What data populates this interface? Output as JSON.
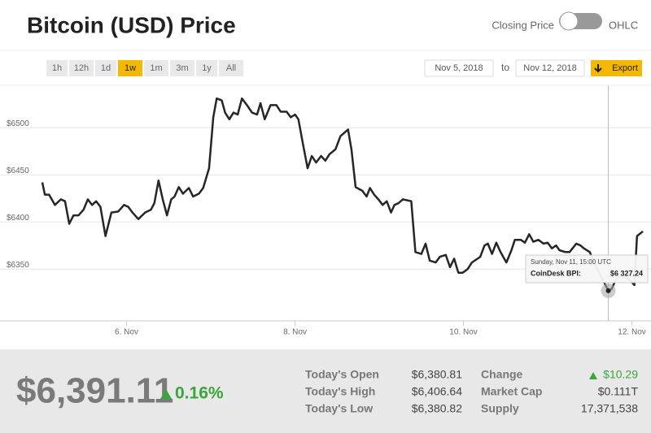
{
  "header": {
    "title": "Bitcoin (USD) Price",
    "toggle_left": "Closing Price",
    "toggle_right": "OHLC"
  },
  "controls": {
    "ranges": [
      "1h",
      "12h",
      "1d",
      "1w",
      "1m",
      "3m",
      "1y",
      "All"
    ],
    "active_range": 3,
    "date_from": "Nov 5, 2018",
    "date_sep": "to",
    "date_to": "Nov 12, 2018",
    "export": "Export"
  },
  "chart_data": {
    "type": "line",
    "color": "#262626",
    "x": [
      5.0,
      5.03,
      5.08,
      5.15,
      5.22,
      5.27,
      5.32,
      5.37,
      5.43,
      5.49,
      5.54,
      5.59,
      5.64,
      5.69,
      5.75,
      5.82,
      5.9,
      5.97,
      6.02,
      6.07,
      6.14,
      6.22,
      6.29,
      6.33,
      6.38,
      6.43,
      6.48,
      6.53,
      6.57,
      6.62,
      6.67,
      6.74,
      6.79,
      6.86,
      6.91,
      6.98,
      7.03,
      7.07,
      7.13,
      7.17,
      7.22,
      7.27,
      7.32,
      7.37,
      7.43,
      7.49,
      7.55,
      7.59,
      7.64,
      7.71,
      7.78,
      7.83,
      7.9,
      7.95,
      8.0,
      8.04,
      8.09,
      8.15,
      8.2,
      8.25,
      8.31,
      8.36,
      8.41,
      8.48,
      8.54,
      8.63,
      8.67,
      8.72,
      8.8,
      8.85,
      8.89,
      8.94,
      8.99,
      9.04,
      9.09,
      9.14,
      9.18,
      9.23,
      9.28,
      9.38,
      9.43,
      9.5,
      9.55,
      9.6,
      9.67,
      9.72,
      9.79,
      9.84,
      9.89,
      9.94,
      9.99,
      10.05,
      10.1,
      10.2,
      10.25,
      10.29,
      10.34,
      10.39,
      10.44,
      10.51,
      10.57,
      10.61,
      10.68,
      10.73,
      10.78,
      10.83,
      10.89,
      10.95,
      11.0,
      11.05,
      11.1,
      11.14,
      11.21,
      11.26,
      11.34,
      11.39,
      11.43,
      11.5,
      11.55,
      11.63,
      11.72,
      11.76,
      11.8,
      11.84,
      11.92,
      11.99,
      12.03,
      12.06,
      12.13
    ],
    "values": [
      6442,
      6429,
      6429,
      6418,
      6424,
      6422,
      6398,
      6407,
      6407,
      6413,
      6424,
      6418,
      6422,
      6416,
      6385,
      6410,
      6411,
      6418,
      6416,
      6410,
      6403,
      6410,
      6413,
      6420,
      6444,
      6424,
      6407,
      6424,
      6427,
      6437,
      6430,
      6436,
      6427,
      6430,
      6436,
      6457,
      6511,
      6531,
      6529,
      6516,
      6509,
      6516,
      6514,
      6531,
      6524,
      6516,
      6514,
      6526,
      6509,
      6524,
      6524,
      6517,
      6517,
      6511,
      6514,
      6509,
      6485,
      6457,
      6470,
      6463,
      6470,
      6465,
      6472,
      6477,
      6491,
      6498,
      6477,
      6437,
      6433,
      6427,
      6436,
      6429,
      6424,
      6418,
      6422,
      6410,
      6418,
      6420,
      6424,
      6422,
      6368,
      6366,
      6377,
      6359,
      6357,
      6363,
      6365,
      6352,
      6361,
      6346,
      6346,
      6350,
      6357,
      6363,
      6375,
      6377,
      6366,
      6378,
      6368,
      6357,
      6370,
      6381,
      6381,
      6378,
      6387,
      6379,
      6381,
      6377,
      6378,
      6372,
      6375,
      6370,
      6368,
      6368,
      6377,
      6375,
      6372,
      6368,
      6357,
      6343,
      6327,
      6329,
      6337,
      6342,
      6342,
      6337,
      6333,
      6385,
      6390
    ],
    "xlim": [
      5,
      12.13
    ],
    "xticks": [
      {
        "value": 6,
        "label": "6. Nov"
      },
      {
        "value": 8,
        "label": "8. Nov"
      },
      {
        "value": 10,
        "label": "10. Nov"
      },
      {
        "value": 12,
        "label": "12. Nov"
      }
    ],
    "ylim": [
      6295,
      6545
    ],
    "yticks": [
      {
        "value": 6350,
        "label": "$6350"
      },
      {
        "value": 6400,
        "label": "$6400"
      },
      {
        "value": 6450,
        "label": "$6450"
      },
      {
        "value": 6500,
        "label": "$6500"
      }
    ],
    "grid": true,
    "tooltip": {
      "title": "Sunday, Nov 11, 15:00 UTC",
      "label": "CoinDesk BPI:",
      "value": "$6 327.24"
    }
  },
  "summary": {
    "price": "$6,391.11",
    "change_pct": "0.16%",
    "stats": [
      [
        "Today's Open",
        "$6,380.81"
      ],
      [
        "Today's High",
        "$6,406.64"
      ],
      [
        "Today's Low",
        "$6,380.82"
      ]
    ],
    "stats2": [
      [
        "Change",
        "$10.29"
      ],
      [
        "Market Cap",
        "$0.111T"
      ],
      [
        "Supply",
        "17,371,538"
      ]
    ]
  }
}
